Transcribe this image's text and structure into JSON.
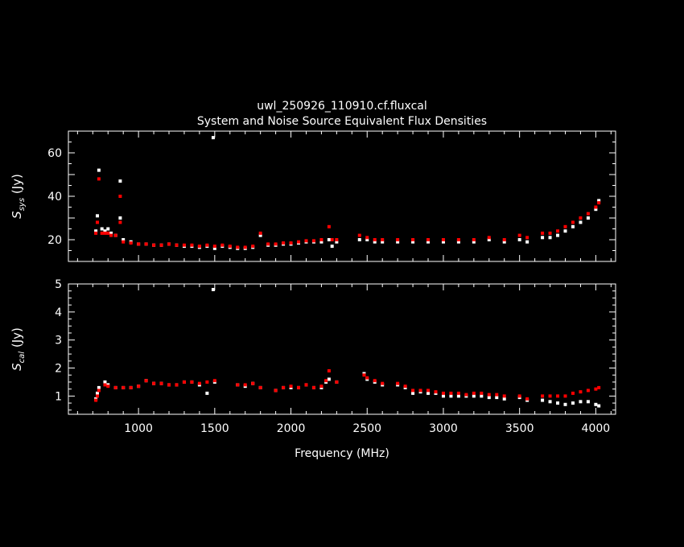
{
  "colors": {
    "background": "#000000",
    "axes": "#ffffff",
    "series_white": "#ffffff",
    "series_red": "#ff0000"
  },
  "chart_data": [
    {
      "type": "scatter",
      "title": "uwl_250926_110910.cf.fluxcal",
      "subtitle": "System and Noise Source Equivalent Flux Densities",
      "ylabel": {
        "symbol": "S",
        "sub": "sys",
        "unit": "(Jy)"
      },
      "xlim": [
        540,
        4130
      ],
      "ylim": [
        10,
        70
      ],
      "x_ticks": [
        1000,
        1500,
        2000,
        2500,
        3000,
        3500,
        4000
      ],
      "y_ticks": [
        "20",
        "40",
        "60"
      ],
      "y_tick_values": [
        20,
        40,
        60
      ],
      "grid": false,
      "series": [
        {
          "color": "white",
          "points": [
            [
              720,
              24
            ],
            [
              730,
              31
            ],
            [
              740,
              52
            ],
            [
              760,
              25
            ],
            [
              780,
              24
            ],
            [
              800,
              25
            ],
            [
              820,
              23
            ],
            [
              850,
              22
            ],
            [
              880,
              47
            ],
            [
              880,
              30
            ],
            [
              900,
              20
            ],
            [
              950,
              19
            ],
            [
              1000,
              18
            ],
            [
              1050,
              18
            ],
            [
              1100,
              17.5
            ],
            [
              1150,
              17.5
            ],
            [
              1200,
              18
            ],
            [
              1250,
              17.5
            ],
            [
              1300,
              17
            ],
            [
              1350,
              17
            ],
            [
              1400,
              16.5
            ],
            [
              1450,
              17
            ],
            [
              1490,
              67
            ],
            [
              1500,
              16
            ],
            [
              1550,
              17
            ],
            [
              1600,
              16.5
            ],
            [
              1650,
              16
            ],
            [
              1700,
              16
            ],
            [
              1750,
              16.5
            ],
            [
              1800,
              22
            ],
            [
              1850,
              17.5
            ],
            [
              1900,
              17.5
            ],
            [
              1950,
              18
            ],
            [
              2000,
              18
            ],
            [
              2050,
              18.5
            ],
            [
              2100,
              19
            ],
            [
              2150,
              19
            ],
            [
              2200,
              19
            ],
            [
              2250,
              20
            ],
            [
              2270,
              17
            ],
            [
              2300,
              19
            ],
            [
              2450,
              20
            ],
            [
              2500,
              20
            ],
            [
              2550,
              19
            ],
            [
              2600,
              19
            ],
            [
              2700,
              19
            ],
            [
              2800,
              19
            ],
            [
              2900,
              19
            ],
            [
              3000,
              19
            ],
            [
              3100,
              19
            ],
            [
              3200,
              19
            ],
            [
              3300,
              20
            ],
            [
              3400,
              19
            ],
            [
              3500,
              20
            ],
            [
              3550,
              19
            ],
            [
              3650,
              21
            ],
            [
              3700,
              21
            ],
            [
              3750,
              22
            ],
            [
              3800,
              24
            ],
            [
              3850,
              26
            ],
            [
              3900,
              28
            ],
            [
              3950,
              30
            ],
            [
              4000,
              34
            ],
            [
              4020,
              38
            ]
          ]
        },
        {
          "color": "red",
          "points": [
            [
              720,
              23
            ],
            [
              730,
              28
            ],
            [
              740,
              48
            ],
            [
              760,
              23
            ],
            [
              780,
              23
            ],
            [
              800,
              23
            ],
            [
              820,
              22
            ],
            [
              850,
              22
            ],
            [
              880,
              40
            ],
            [
              880,
              28
            ],
            [
              900,
              19
            ],
            [
              950,
              18.5
            ],
            [
              1000,
              18
            ],
            [
              1050,
              18
            ],
            [
              1100,
              17.5
            ],
            [
              1150,
              17.5
            ],
            [
              1200,
              18
            ],
            [
              1250,
              17.5
            ],
            [
              1300,
              17.5
            ],
            [
              1350,
              17.5
            ],
            [
              1400,
              17
            ],
            [
              1450,
              17.5
            ],
            [
              1500,
              17
            ],
            [
              1550,
              17.5
            ],
            [
              1600,
              17
            ],
            [
              1650,
              16.5
            ],
            [
              1700,
              16.5
            ],
            [
              1750,
              17
            ],
            [
              1800,
              23
            ],
            [
              1850,
              18
            ],
            [
              1900,
              18
            ],
            [
              1950,
              18.5
            ],
            [
              2000,
              18.5
            ],
            [
              2050,
              19
            ],
            [
              2100,
              19.5
            ],
            [
              2150,
              19.5
            ],
            [
              2200,
              20
            ],
            [
              2250,
              26
            ],
            [
              2270,
              20
            ],
            [
              2300,
              20
            ],
            [
              2450,
              22
            ],
            [
              2500,
              21
            ],
            [
              2550,
              20
            ],
            [
              2600,
              20
            ],
            [
              2700,
              20
            ],
            [
              2800,
              20
            ],
            [
              2900,
              20
            ],
            [
              3000,
              20
            ],
            [
              3100,
              20
            ],
            [
              3200,
              20
            ],
            [
              3300,
              21
            ],
            [
              3400,
              20
            ],
            [
              3500,
              22
            ],
            [
              3550,
              21
            ],
            [
              3650,
              23
            ],
            [
              3700,
              23
            ],
            [
              3750,
              24
            ],
            [
              3800,
              26
            ],
            [
              3850,
              28
            ],
            [
              3900,
              30
            ],
            [
              3950,
              32
            ],
            [
              4000,
              35
            ],
            [
              4020,
              37
            ]
          ]
        }
      ]
    },
    {
      "type": "scatter",
      "xlabel": "Frequency (MHz)",
      "ylabel": {
        "symbol": "S",
        "sub": "cal",
        "unit": "(Jy)"
      },
      "xlim": [
        540,
        4130
      ],
      "ylim": [
        0.35,
        5.0
      ],
      "x_ticks": [
        1000,
        1500,
        2000,
        2500,
        3000,
        3500,
        4000
      ],
      "y_ticks": [
        "1",
        "2",
        "3",
        "4",
        "5"
      ],
      "y_tick_values": [
        1,
        2,
        3,
        4,
        5
      ],
      "grid": false,
      "series": [
        {
          "color": "white",
          "points": [
            [
              720,
              0.9
            ],
            [
              730,
              1.1
            ],
            [
              740,
              1.3
            ],
            [
              780,
              1.5
            ],
            [
              800,
              1.4
            ],
            [
              850,
              1.3
            ],
            [
              900,
              1.3
            ],
            [
              950,
              1.3
            ],
            [
              1000,
              1.35
            ],
            [
              1050,
              1.55
            ],
            [
              1100,
              1.45
            ],
            [
              1150,
              1.45
            ],
            [
              1200,
              1.4
            ],
            [
              1250,
              1.4
            ],
            [
              1300,
              1.5
            ],
            [
              1350,
              1.5
            ],
            [
              1400,
              1.4
            ],
            [
              1450,
              1.1
            ],
            [
              1490,
              4.8
            ],
            [
              1500,
              1.5
            ],
            [
              1650,
              1.4
            ],
            [
              1700,
              1.35
            ],
            [
              1750,
              1.45
            ],
            [
              1800,
              1.3
            ],
            [
              1900,
              1.2
            ],
            [
              1950,
              1.3
            ],
            [
              2000,
              1.3
            ],
            [
              2050,
              1.3
            ],
            [
              2100,
              1.4
            ],
            [
              2150,
              1.3
            ],
            [
              2200,
              1.3
            ],
            [
              2230,
              1.5
            ],
            [
              2250,
              1.6
            ],
            [
              2300,
              1.5
            ],
            [
              2480,
              1.8
            ],
            [
              2500,
              1.6
            ],
            [
              2550,
              1.5
            ],
            [
              2600,
              1.4
            ],
            [
              2700,
              1.4
            ],
            [
              2750,
              1.3
            ],
            [
              2800,
              1.1
            ],
            [
              2850,
              1.15
            ],
            [
              2900,
              1.1
            ],
            [
              2950,
              1.1
            ],
            [
              3000,
              1.0
            ],
            [
              3050,
              1.0
            ],
            [
              3100,
              1.0
            ],
            [
              3150,
              1.0
            ],
            [
              3200,
              1.0
            ],
            [
              3250,
              1.0
            ],
            [
              3300,
              0.95
            ],
            [
              3350,
              0.95
            ],
            [
              3400,
              0.9
            ],
            [
              3500,
              0.95
            ],
            [
              3550,
              0.85
            ],
            [
              3650,
              0.85
            ],
            [
              3700,
              0.8
            ],
            [
              3750,
              0.75
            ],
            [
              3800,
              0.7
            ],
            [
              3850,
              0.75
            ],
            [
              3900,
              0.8
            ],
            [
              3950,
              0.8
            ],
            [
              4000,
              0.7
            ],
            [
              4020,
              0.65
            ]
          ]
        },
        {
          "color": "red",
          "points": [
            [
              720,
              0.85
            ],
            [
              730,
              1.0
            ],
            [
              740,
              1.2
            ],
            [
              780,
              1.4
            ],
            [
              800,
              1.35
            ],
            [
              850,
              1.3
            ],
            [
              900,
              1.3
            ],
            [
              950,
              1.3
            ],
            [
              1000,
              1.35
            ],
            [
              1050,
              1.55
            ],
            [
              1100,
              1.45
            ],
            [
              1150,
              1.45
            ],
            [
              1200,
              1.4
            ],
            [
              1250,
              1.4
            ],
            [
              1300,
              1.5
            ],
            [
              1350,
              1.5
            ],
            [
              1400,
              1.45
            ],
            [
              1450,
              1.5
            ],
            [
              1500,
              1.55
            ],
            [
              1650,
              1.4
            ],
            [
              1700,
              1.4
            ],
            [
              1750,
              1.45
            ],
            [
              1800,
              1.3
            ],
            [
              1900,
              1.2
            ],
            [
              1950,
              1.3
            ],
            [
              2000,
              1.35
            ],
            [
              2050,
              1.3
            ],
            [
              2100,
              1.4
            ],
            [
              2150,
              1.3
            ],
            [
              2200,
              1.35
            ],
            [
              2230,
              1.55
            ],
            [
              2250,
              1.9
            ],
            [
              2300,
              1.5
            ],
            [
              2480,
              1.75
            ],
            [
              2500,
              1.65
            ],
            [
              2550,
              1.55
            ],
            [
              2600,
              1.45
            ],
            [
              2700,
              1.45
            ],
            [
              2750,
              1.35
            ],
            [
              2800,
              1.2
            ],
            [
              2850,
              1.2
            ],
            [
              2900,
              1.2
            ],
            [
              2950,
              1.15
            ],
            [
              3000,
              1.1
            ],
            [
              3050,
              1.1
            ],
            [
              3100,
              1.1
            ],
            [
              3150,
              1.05
            ],
            [
              3200,
              1.1
            ],
            [
              3250,
              1.1
            ],
            [
              3300,
              1.05
            ],
            [
              3350,
              1.05
            ],
            [
              3400,
              1.0
            ],
            [
              3500,
              1.0
            ],
            [
              3550,
              0.9
            ],
            [
              3650,
              1.0
            ],
            [
              3700,
              1.0
            ],
            [
              3750,
              1.0
            ],
            [
              3800,
              1.0
            ],
            [
              3850,
              1.1
            ],
            [
              3900,
              1.15
            ],
            [
              3950,
              1.2
            ],
            [
              4000,
              1.25
            ],
            [
              4020,
              1.3
            ]
          ]
        }
      ]
    }
  ]
}
